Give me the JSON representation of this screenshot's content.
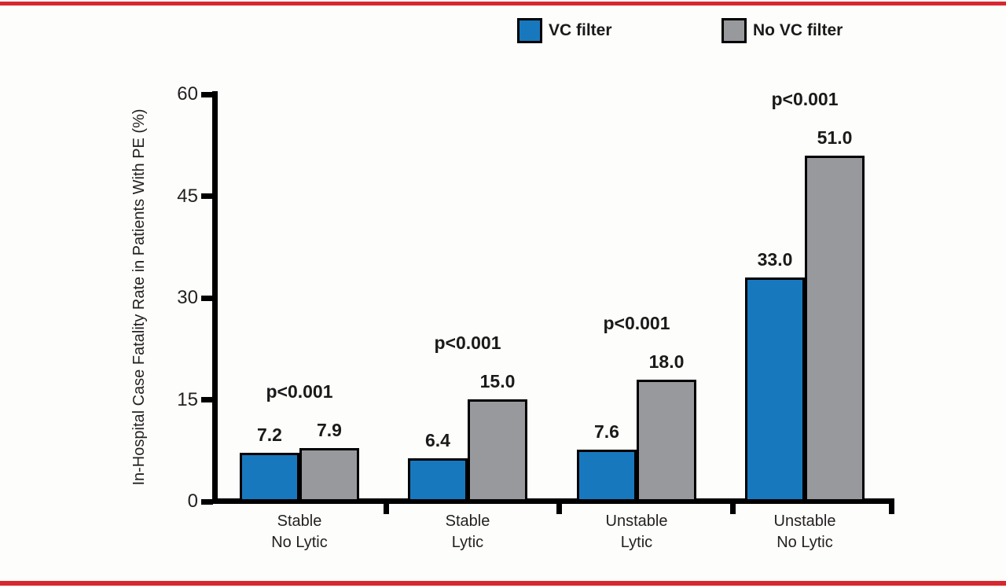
{
  "chart_data": {
    "type": "bar",
    "title": "",
    "ylabel": "In-Hospital Case Fatality Rate in Patients With PE (%)",
    "xlabel": "",
    "ylim": [
      0,
      60
    ],
    "yticks": [
      0,
      15,
      30,
      45,
      60
    ],
    "grid": false,
    "legend_position": "top",
    "categories": [
      "Stable\nNo Lytic",
      "Stable\nLytic",
      "Unstable\nLytic",
      "Unstable\nNo Lytic"
    ],
    "series": [
      {
        "name": "VC filter",
        "color": "#1878be",
        "values": [
          7.2,
          6.4,
          7.6,
          33.0
        ]
      },
      {
        "name": "No VC filter",
        "color": "#97999d",
        "values": [
          7.9,
          15.0,
          18.0,
          51.0
        ]
      }
    ],
    "value_label_format": "one_decimal",
    "p_value_labels": [
      "p<0.001",
      "p<0.001",
      "p<0.001",
      "p<0.001"
    ]
  },
  "style": {
    "border_line_color": "#d7282f",
    "axis_color": "#000000",
    "background": "#fdfdfb"
  }
}
